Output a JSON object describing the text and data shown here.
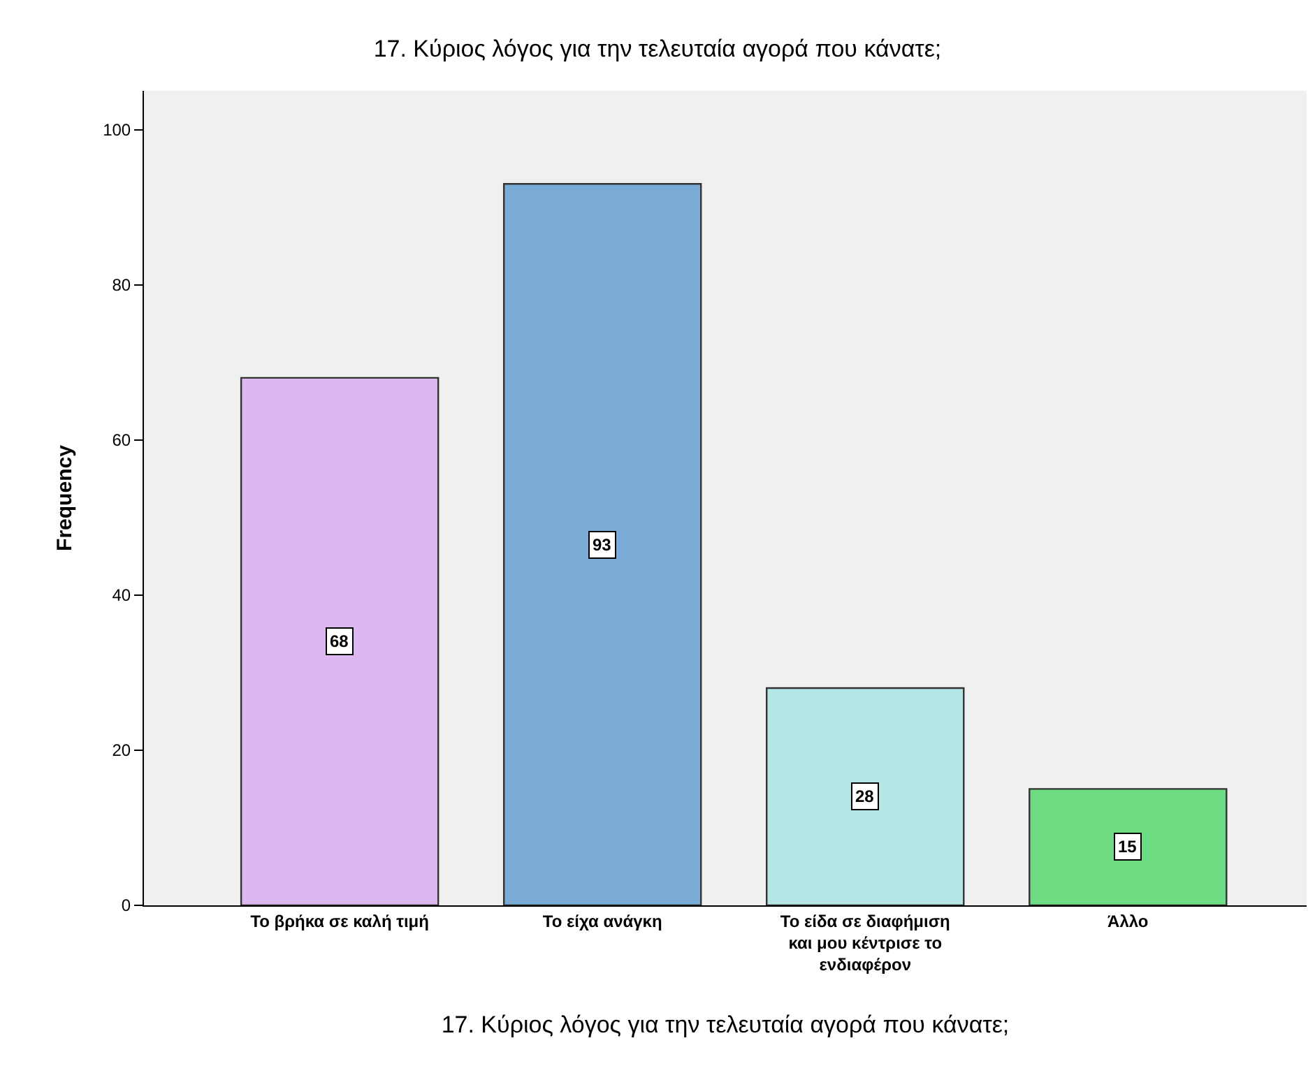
{
  "chart_data": {
    "type": "bar",
    "title": "17. Κύριος λόγος για την τελευταία αγορά που κάνατε;",
    "xlabel": "17. Κύριος λόγος για την τελευταία αγορά που κάνατε;",
    "ylabel": "Frequency",
    "categories": [
      "Το βρήκα σε καλή τιμή",
      "Το είχα ανάγκη",
      "Το είδα σε διαφήμιση και μου κέντρισε το ενδιαφέρον",
      "Άλλο"
    ],
    "values": [
      68,
      93,
      28,
      15
    ],
    "colors": [
      "#dbb8f0",
      "#7aaad6",
      "#b4e6e6",
      "#6edc82"
    ],
    "ylim": [
      0,
      105
    ],
    "yticks": [
      0,
      20,
      40,
      60,
      80,
      100
    ],
    "grid": false,
    "data_labels": true
  }
}
